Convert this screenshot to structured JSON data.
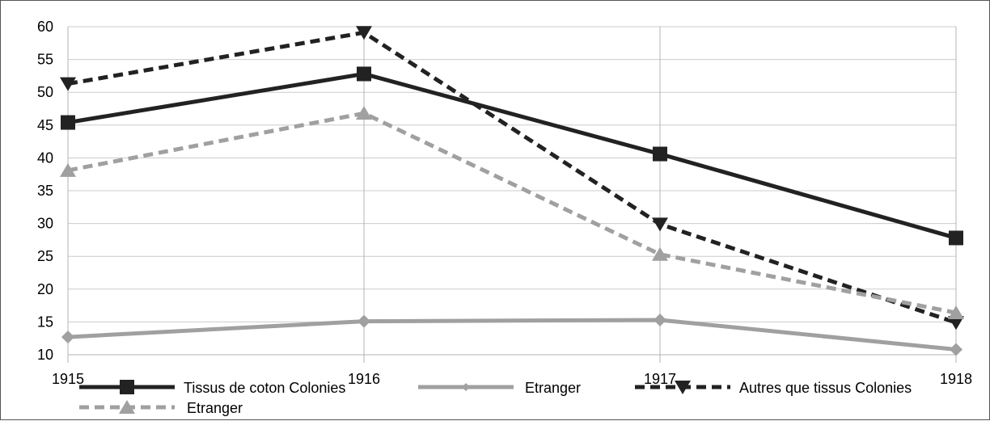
{
  "chart_data": {
    "type": "line",
    "title": "",
    "xlabel": "",
    "ylabel": "",
    "x": [
      "1915",
      "1916",
      "1917",
      "1918"
    ],
    "ylim": [
      10,
      60
    ],
    "yticks": [
      10,
      15,
      20,
      25,
      30,
      35,
      40,
      45,
      50,
      55,
      60
    ],
    "grid": true,
    "legend_position": "bottom",
    "series": [
      {
        "name": "Tissus de coton Colonies",
        "values": [
          45.4,
          52.8,
          40.6,
          27.8
        ],
        "color": "#222222",
        "dashed": false,
        "marker": "square"
      },
      {
        "name": "Etranger",
        "values": [
          12.7,
          15.1,
          15.3,
          10.8
        ],
        "color": "#a0a0a0",
        "dashed": false,
        "marker": "diamond"
      },
      {
        "name": "Autres que tissus Colonies",
        "values": [
          51.3,
          59.1,
          29.9,
          14.9
        ],
        "color": "#222222",
        "dashed": true,
        "marker": "triangle-down"
      },
      {
        "name": "Etranger",
        "values": [
          38.1,
          46.8,
          25.3,
          16.4
        ],
        "color": "#a0a0a0",
        "dashed": true,
        "marker": "triangle-up"
      }
    ]
  }
}
